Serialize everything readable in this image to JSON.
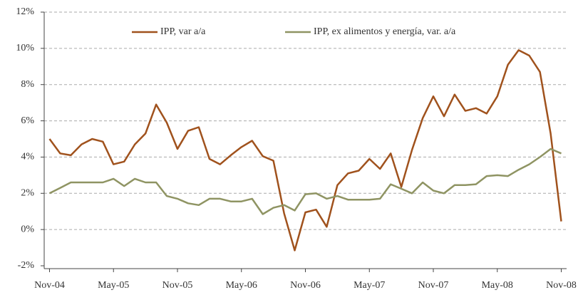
{
  "chart_data": {
    "type": "line",
    "categories": [
      "Nov-04",
      null,
      null,
      null,
      null,
      null,
      "May-05",
      null,
      null,
      null,
      null,
      null,
      "Nov-05",
      null,
      null,
      null,
      null,
      null,
      "May-06",
      null,
      null,
      null,
      null,
      null,
      "Nov-06",
      null,
      null,
      null,
      null,
      null,
      "May-07",
      null,
      null,
      null,
      null,
      null,
      "Nov-07",
      null,
      null,
      null,
      null,
      null,
      "May-08",
      null,
      null,
      null,
      null,
      null,
      "Nov-08"
    ],
    "series": [
      {
        "name": "IPP, var a/a",
        "color": "#a0521d",
        "values": [
          5.0,
          4.2,
          4.1,
          4.7,
          5.0,
          4.85,
          3.6,
          3.75,
          4.7,
          5.3,
          6.9,
          5.9,
          4.45,
          5.45,
          5.65,
          3.9,
          3.6,
          4.1,
          4.55,
          4.9,
          4.05,
          3.8,
          0.9,
          -1.15,
          0.95,
          1.1,
          0.15,
          2.45,
          3.1,
          3.25,
          3.9,
          3.35,
          4.2,
          2.35,
          4.4,
          6.15,
          7.35,
          6.25,
          7.45,
          6.55,
          6.7,
          6.4,
          7.35,
          9.1,
          9.9,
          9.6,
          8.7,
          5.3,
          0.45
        ]
      },
      {
        "name": "IPP, ex alimentos y energía, var. a/a",
        "color": "#8f9463",
        "values": [
          2.0,
          2.3,
          2.6,
          2.6,
          2.6,
          2.6,
          2.8,
          2.4,
          2.8,
          2.6,
          2.6,
          1.85,
          1.7,
          1.45,
          1.35,
          1.7,
          1.7,
          1.55,
          1.55,
          1.7,
          0.85,
          1.2,
          1.35,
          1.05,
          1.95,
          2.0,
          1.7,
          1.85,
          1.65,
          1.65,
          1.65,
          1.7,
          2.5,
          2.25,
          2.0,
          2.6,
          2.15,
          2.0,
          2.45,
          2.45,
          2.5,
          2.95,
          3.0,
          2.95,
          3.3,
          3.6,
          4.0,
          4.45,
          4.2
        ]
      }
    ],
    "ylim": [
      -2,
      12
    ],
    "yticks": [
      {
        "value": -2,
        "label": "-2%"
      },
      {
        "value": 0,
        "label": "0%"
      },
      {
        "value": 2,
        "label": "2%"
      },
      {
        "value": 4,
        "label": "4%"
      },
      {
        "value": 6,
        "label": "6%"
      },
      {
        "value": 8,
        "label": "8%"
      },
      {
        "value": 10,
        "label": "10%"
      },
      {
        "value": 12,
        "label": "12%"
      }
    ],
    "grid": true,
    "legend": "top"
  }
}
